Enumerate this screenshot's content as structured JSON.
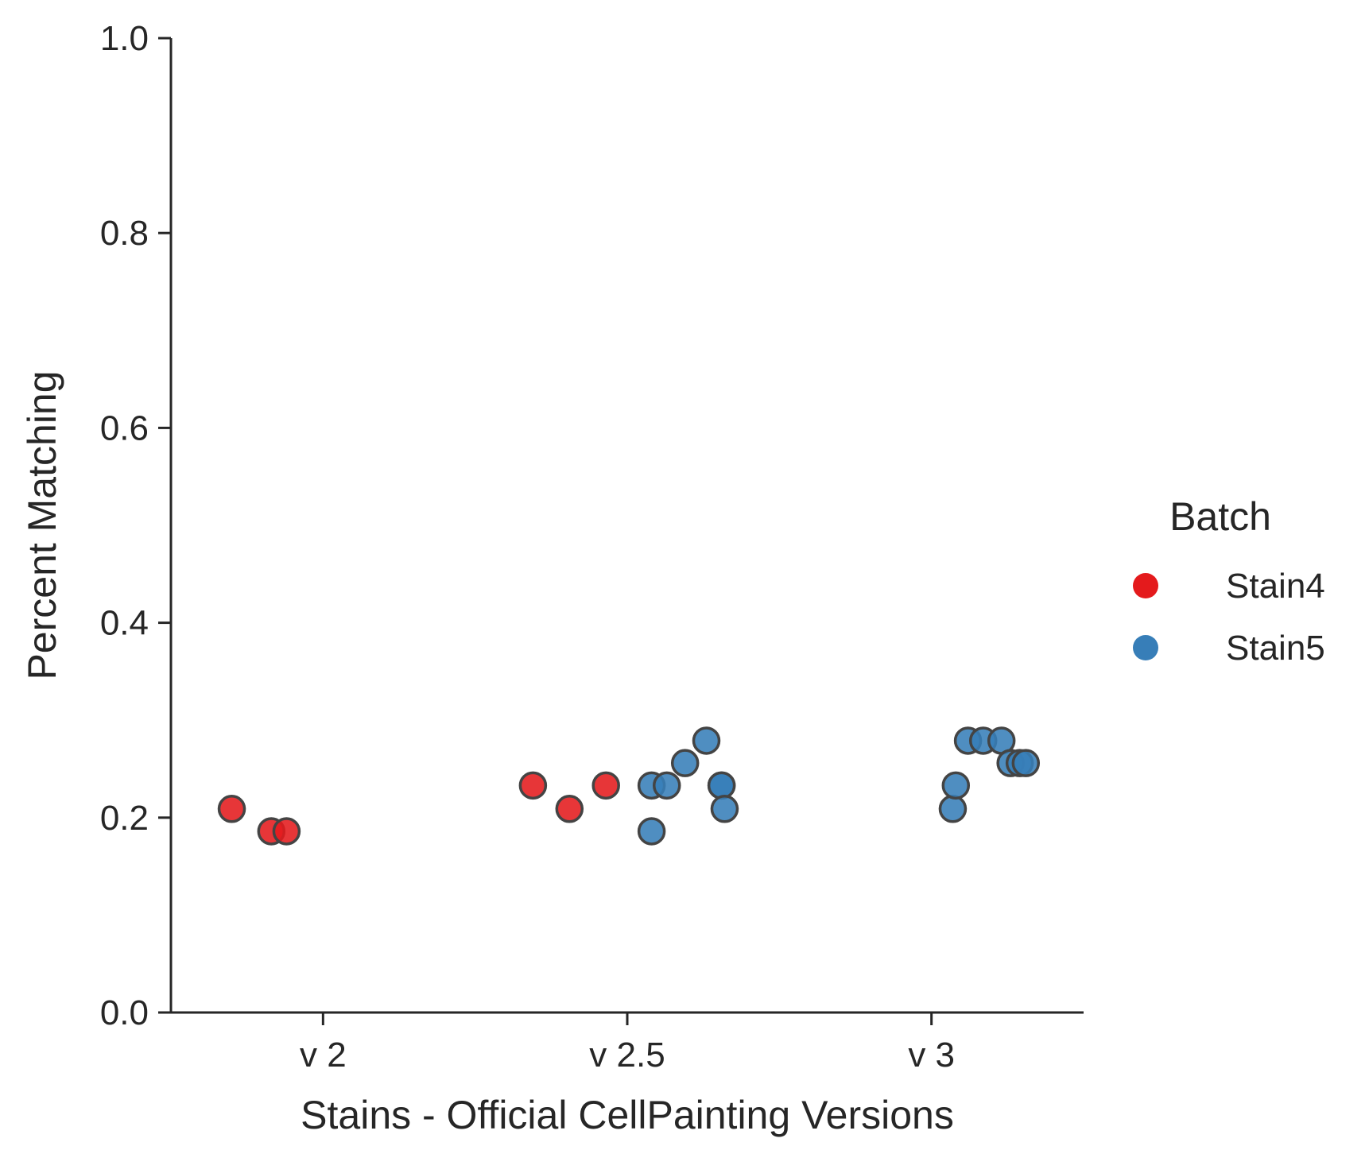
{
  "chart_data": {
    "type": "scatter",
    "title": "",
    "xlabel": "Stains - Official CellPainting Versions",
    "ylabel": "Percent Matching",
    "ylim": [
      0,
      1
    ],
    "yticks": [
      "0.0",
      "0.2",
      "0.4",
      "0.6",
      "0.8",
      "1.0"
    ],
    "categories": [
      "v 2",
      "v 2.5",
      "v 3"
    ],
    "grid": false,
    "legend": {
      "title": "Batch",
      "placement": "right"
    },
    "series": [
      {
        "name": "Stain4",
        "color": "#e41a1c",
        "points": [
          {
            "category": "v 2",
            "y": 0.209
          },
          {
            "category": "v 2",
            "y": 0.186
          },
          {
            "category": "v 2",
            "y": 0.186
          },
          {
            "category": "v 2.5",
            "y": 0.233
          },
          {
            "category": "v 2.5",
            "y": 0.209
          },
          {
            "category": "v 2.5",
            "y": 0.233
          }
        ]
      },
      {
        "name": "Stain5",
        "color": "#377eb8",
        "points": [
          {
            "category": "v 2.5",
            "y": 0.233
          },
          {
            "category": "v 2.5",
            "y": 0.186
          },
          {
            "category": "v 2.5",
            "y": 0.233
          },
          {
            "category": "v 2.5",
            "y": 0.256
          },
          {
            "category": "v 2.5",
            "y": 0.279
          },
          {
            "category": "v 2.5",
            "y": 0.233
          },
          {
            "category": "v 2.5",
            "y": 0.233
          },
          {
            "category": "v 2.5",
            "y": 0.209
          },
          {
            "category": "v 3",
            "y": 0.209
          },
          {
            "category": "v 3",
            "y": 0.233
          },
          {
            "category": "v 3",
            "y": 0.279
          },
          {
            "category": "v 3",
            "y": 0.279
          },
          {
            "category": "v 3",
            "y": 0.279
          },
          {
            "category": "v 3",
            "y": 0.256
          },
          {
            "category": "v 3",
            "y": 0.256
          },
          {
            "category": "v 3",
            "y": 0.256
          }
        ]
      }
    ]
  }
}
